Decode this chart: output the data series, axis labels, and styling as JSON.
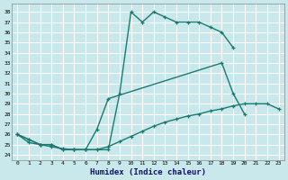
{
  "bg_color": "#c8e8ec",
  "grid_color": "#b0d8dc",
  "line_color": "#1a7a6e",
  "xlabel": "Humidex (Indice chaleur)",
  "xlim": [
    -0.5,
    23.5
  ],
  "ylim": [
    23.5,
    38.8
  ],
  "xticks": [
    0,
    1,
    2,
    3,
    4,
    5,
    6,
    7,
    8,
    9,
    10,
    11,
    12,
    13,
    14,
    15,
    16,
    17,
    18,
    19,
    20,
    21,
    22,
    23
  ],
  "yticks": [
    24,
    25,
    26,
    27,
    28,
    29,
    30,
    31,
    32,
    33,
    34,
    35,
    36,
    37,
    38
  ],
  "series": [
    {
      "x": [
        0,
        1,
        2,
        3,
        4,
        5,
        6,
        7,
        8,
        9,
        10,
        11,
        12,
        13,
        14,
        15,
        16,
        17,
        18,
        19
      ],
      "y": [
        26.0,
        25.5,
        25.0,
        25.0,
        24.5,
        24.5,
        24.5,
        24.5,
        24.5,
        30.0,
        38.0,
        37.0,
        38.0,
        37.5,
        37.0,
        37.0,
        37.0,
        36.5,
        36.0,
        34.5
      ]
    },
    {
      "x": [
        0,
        1,
        2,
        3,
        4,
        5,
        6,
        7,
        8,
        18,
        19,
        20
      ],
      "y": [
        26.0,
        25.5,
        25.0,
        25.0,
        24.5,
        24.5,
        24.5,
        26.5,
        29.5,
        33.0,
        30.0,
        28.0
      ]
    },
    {
      "x": [
        0,
        1,
        2,
        3,
        4,
        5,
        6,
        7,
        8,
        9,
        10,
        11,
        12,
        13,
        14,
        15,
        16,
        17,
        18,
        19,
        20,
        21,
        22,
        23
      ],
      "y": [
        26.0,
        25.2,
        25.0,
        24.8,
        24.6,
        24.5,
        24.5,
        24.5,
        24.8,
        25.3,
        25.8,
        26.3,
        26.8,
        27.2,
        27.5,
        27.8,
        28.0,
        28.3,
        28.5,
        28.8,
        29.0,
        29.0,
        29.0,
        28.5
      ]
    }
  ],
  "linewidth": 1.0,
  "markersize": 3.5
}
